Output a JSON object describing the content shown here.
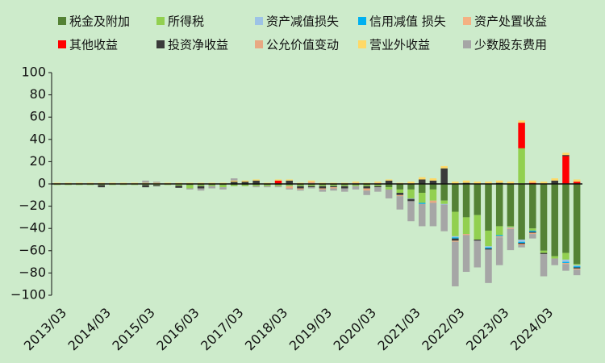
{
  "chart_data": {
    "type": "bar",
    "stacked": true,
    "title": "",
    "xlabel": "",
    "ylabel": "",
    "ylim": [
      -100,
      100
    ],
    "yticks": [
      100,
      80,
      60,
      40,
      20,
      0,
      -20,
      -40,
      -60,
      -80,
      -100
    ],
    "xtick_labels": [
      "2013/03",
      "2014/03",
      "2015/03",
      "2016/03",
      "2017/03",
      "2018/03",
      "2019/03",
      "2020/03",
      "2021/03",
      "2022/03",
      "2023/03",
      "2024/03"
    ],
    "legend_position": "top",
    "grid": false,
    "categories": [
      "2013/03",
      "2013/06",
      "2013/09",
      "2013/12",
      "2014/03",
      "2014/06",
      "2014/09",
      "2014/12",
      "2015/03",
      "2015/06",
      "2015/09",
      "2015/12",
      "2016/03",
      "2016/06",
      "2016/09",
      "2016/12",
      "2017/03",
      "2017/06",
      "2017/09",
      "2017/12",
      "2018/03",
      "2018/06",
      "2018/09",
      "2018/12",
      "2019/03",
      "2019/06",
      "2019/09",
      "2019/12",
      "2020/03",
      "2020/06",
      "2020/09",
      "2020/12",
      "2021/03",
      "2021/06",
      "2021/09",
      "2021/12",
      "2022/03",
      "2022/06",
      "2022/09",
      "2022/12",
      "2023/03",
      "2023/06",
      "2023/09",
      "2023/12",
      "2024/03",
      "2024/06",
      "2024/09",
      "2024/12"
    ],
    "series": [
      {
        "name": "税金及附加",
        "color": "#548235",
        "values": [
          -0.5,
          -0.5,
          -0.5,
          -0.5,
          -0.5,
          -0.5,
          -0.5,
          -0.5,
          -0.5,
          -0.5,
          -0.5,
          -0.5,
          -1,
          -1,
          -1,
          -1,
          -1,
          -1,
          -1,
          -1,
          -1,
          -1,
          -1,
          -1,
          -1,
          -1,
          -1,
          -1,
          -1,
          -1,
          -3,
          -5,
          -5,
          -8,
          -5,
          -15,
          -25,
          -30,
          -28,
          -42,
          -38,
          -38,
          -50,
          -40,
          -60,
          -65,
          -62,
          -72
        ]
      },
      {
        "name": "所得税",
        "color": "#92D050",
        "values": [
          -0.5,
          -0.5,
          -0.5,
          -0.5,
          -0.5,
          -0.5,
          -0.5,
          -0.5,
          -0.5,
          -0.5,
          -0.5,
          -1,
          -3,
          -1,
          -1,
          -2,
          -1,
          -1,
          -1,
          -1,
          -1,
          -1,
          -1,
          -1,
          -1,
          -1,
          -1,
          -1,
          -1,
          -1,
          -2,
          -3,
          -8,
          -9,
          -10,
          -3,
          -22,
          -15,
          -22,
          -14,
          -8,
          -1,
          32,
          -2,
          -2,
          -2,
          -6,
          -1
        ]
      },
      {
        "name": "资产减值损失",
        "color": "#9DC3E6",
        "values": [
          0,
          0,
          0,
          0,
          0,
          0,
          0,
          0,
          0,
          0,
          0,
          0,
          0,
          0,
          0,
          0,
          0,
          0,
          0,
          0,
          0,
          0,
          0,
          0,
          0,
          0,
          0,
          0,
          0,
          0,
          0,
          0,
          -0.5,
          0,
          0,
          -0.5,
          -1,
          0,
          0,
          -1,
          0,
          -0.5,
          -2,
          0,
          0,
          0,
          -2,
          -1
        ]
      },
      {
        "name": "信用减值  损失",
        "color": "#00B0F0",
        "values": [
          0,
          0,
          0,
          0,
          0,
          0,
          0,
          0,
          0,
          0,
          0,
          0,
          0,
          0,
          0,
          0,
          0,
          0,
          0,
          0,
          0,
          0,
          0,
          0,
          0,
          0,
          0,
          0,
          0,
          0,
          0,
          0,
          0,
          -1,
          0,
          0,
          -1,
          0,
          0,
          -1,
          -1,
          0,
          -1,
          -1,
          0,
          0,
          -1,
          -1
        ]
      },
      {
        "name": "资产处置收益",
        "color": "#F4B183",
        "values": [
          0,
          0,
          0,
          0,
          0,
          0,
          0,
          0,
          0,
          0,
          0,
          0,
          0,
          0,
          0,
          0,
          0,
          0,
          0,
          0,
          0,
          0,
          0,
          0,
          0,
          0,
          0,
          0,
          0,
          0,
          0,
          0,
          0,
          0,
          0,
          0,
          0,
          0,
          0,
          0,
          0,
          0,
          0,
          0,
          0,
          0,
          0,
          0
        ]
      },
      {
        "name": "其他收益",
        "color": "#FF0000",
        "values": [
          0,
          0,
          0,
          0,
          0,
          0,
          0,
          0,
          0,
          0,
          0,
          0,
          0,
          0,
          0,
          0,
          0,
          0,
          0,
          0,
          3,
          0,
          0,
          0,
          0,
          0,
          0,
          0,
          0,
          0,
          0,
          0,
          0,
          0,
          0,
          0,
          0,
          0,
          0,
          0,
          0,
          0,
          23,
          1,
          0,
          0,
          25,
          2
        ]
      },
      {
        "name": "投资净收益",
        "color": "#3A3A3A",
        "values": [
          0,
          0,
          0,
          0,
          -2,
          0,
          0,
          0,
          -2,
          -1,
          0,
          -2,
          0,
          -2,
          0,
          0,
          2,
          2,
          3,
          0,
          0,
          3,
          -2,
          -1,
          -2,
          -1,
          -2,
          0,
          -2,
          -1,
          3,
          -2,
          -2,
          4,
          3,
          14,
          -2,
          1,
          -1,
          -1,
          1,
          0,
          -1,
          -1,
          -1,
          3,
          1,
          -1
        ]
      },
      {
        "name": "公允价值变动",
        "color": "#E8A882",
        "values": [
          0,
          0,
          0,
          0,
          0,
          0,
          0,
          0,
          0,
          0,
          0,
          0,
          0,
          0,
          0,
          0,
          0,
          0,
          0,
          0,
          0,
          -2,
          -1,
          2,
          -1,
          -1,
          0,
          1,
          -2,
          1,
          0,
          -1,
          0,
          0,
          -2,
          0,
          -1,
          -1,
          0,
          0,
          -1,
          -1,
          -1,
          -1,
          0,
          0,
          -1,
          -1
        ]
      },
      {
        "name": "营业外收益",
        "color": "#FFD966",
        "values": [
          1,
          1,
          1,
          1,
          1,
          1,
          1,
          1,
          1,
          1,
          1,
          1,
          1,
          1,
          1,
          1,
          1,
          1,
          1,
          1,
          1,
          1,
          1,
          1,
          1,
          1,
          1,
          1,
          1,
          1,
          1,
          1,
          2,
          2,
          2,
          2,
          2,
          2,
          2,
          2,
          2,
          2,
          2,
          2,
          2,
          2,
          2,
          2
        ]
      },
      {
        "name": "少数股东费用",
        "color": "#A6A6A6",
        "values": [
          0,
          0,
          0,
          0,
          0,
          0,
          0,
          0,
          2,
          1,
          0,
          0,
          -1,
          -2,
          -2,
          -2,
          2,
          0,
          -1,
          -1,
          -1,
          -1,
          -1,
          -1,
          -2,
          -2,
          -3,
          -3,
          -4,
          -4,
          -8,
          -12,
          -18,
          -20,
          -21,
          -24,
          -40,
          -33,
          -24,
          -30,
          -25,
          -19,
          -2,
          -4,
          -20,
          -6,
          -6,
          -5
        ]
      }
    ]
  }
}
